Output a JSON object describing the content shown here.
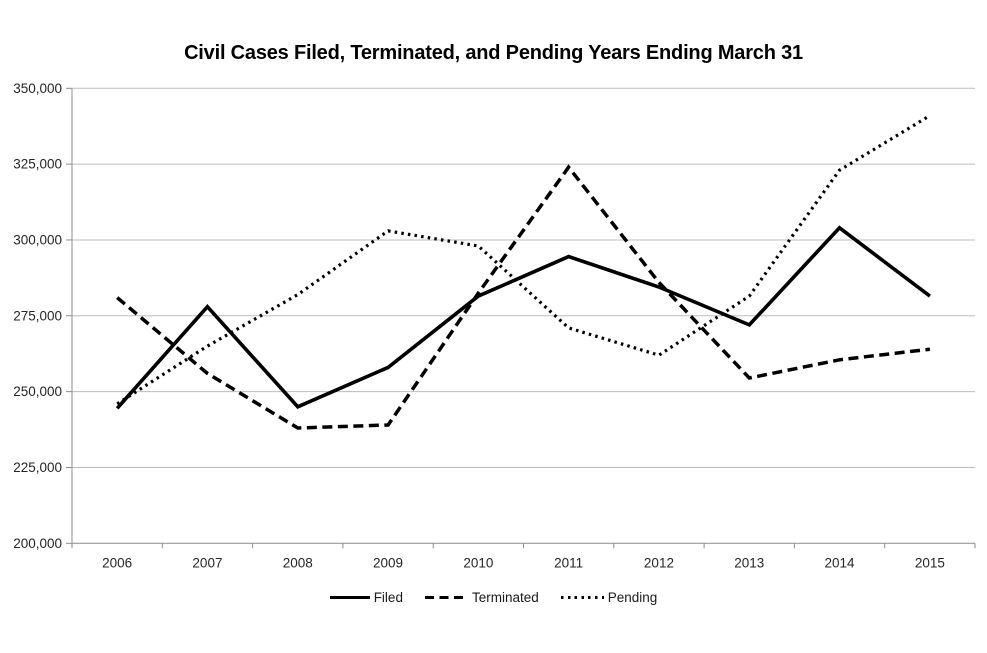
{
  "chart_data": {
    "type": "line",
    "title": "Civil Cases Filed, Terminated, and Pending Years Ending March 31",
    "xlabel": "",
    "ylabel": "",
    "categories": [
      "2006",
      "2007",
      "2008",
      "2009",
      "2010",
      "2011",
      "2012",
      "2013",
      "2014",
      "2015"
    ],
    "series": [
      {
        "name": "Filed",
        "style": "solid",
        "values": [
          244500,
          278000,
          245000,
          258000,
          281500,
          294500,
          284500,
          272000,
          304000,
          281500
        ]
      },
      {
        "name": "Terminated",
        "style": "dashed",
        "values": [
          281000,
          256000,
          238000,
          239000,
          282500,
          324000,
          286000,
          254500,
          260500,
          264000
        ]
      },
      {
        "name": "Pending",
        "style": "dotted",
        "values": [
          246000,
          265000,
          282000,
          303000,
          298000,
          271000,
          262000,
          281500,
          323000,
          341000
        ]
      }
    ],
    "ylim": [
      200000,
      350000
    ],
    "ytick_step": 25000,
    "ytick_labels": [
      "200,000",
      "225,000",
      "250,000",
      "275,000",
      "300,000",
      "325,000",
      "350,000"
    ],
    "grid": true,
    "legend_position": "bottom",
    "colors": {
      "series_line": "#000000",
      "gridline": "#bdbdbd",
      "axis": "#8c8c8c",
      "tick_label": "#262626",
      "title": "#000000",
      "background": "#ffffff"
    }
  }
}
